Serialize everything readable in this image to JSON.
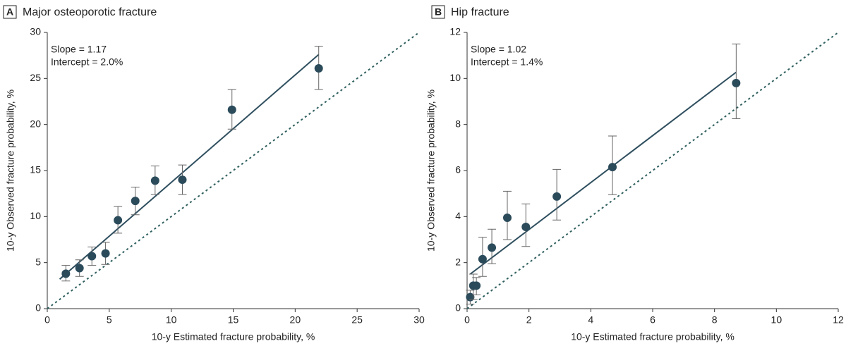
{
  "chart_data": [
    {
      "type": "scatter",
      "panel_label": "A",
      "title": "Major osteoporotic fracture",
      "x_label": "10-y Estimated fracture probability, %",
      "y_label": "10-y Observed fracture probability, %",
      "annotations": [
        "Slope = 1.17",
        "Intercept = 2.0%"
      ],
      "xlim": [
        0,
        30
      ],
      "xticks": [
        0,
        5,
        10,
        15,
        20,
        25,
        30
      ],
      "ylim": [
        0,
        30
      ],
      "yticks": [
        0,
        5,
        10,
        15,
        20,
        25,
        30
      ],
      "points": {
        "color": "#2b4b5b",
        "x": [
          1.5,
          2.6,
          3.6,
          4.7,
          5.7,
          7.1,
          8.7,
          10.9,
          14.9,
          21.9
        ],
        "values": [
          3.8,
          4.4,
          5.7,
          6.0,
          9.6,
          11.7,
          13.9,
          14.0,
          21.6,
          26.1
        ],
        "error_low": [
          3.0,
          3.5,
          4.7,
          4.8,
          8.2,
          10.2,
          12.4,
          12.4,
          19.5,
          23.8
        ],
        "error_high": [
          4.7,
          5.3,
          6.7,
          7.2,
          11.1,
          13.2,
          15.5,
          15.6,
          23.8,
          28.5
        ]
      },
      "fit_line": {
        "color": "#2f4f5f",
        "x": [
          1.0,
          21.9
        ],
        "values": [
          3.2,
          27.6
        ]
      },
      "reference_line": {
        "color": "#2f5f5f",
        "dashed": true,
        "x": [
          0,
          30
        ],
        "values": [
          0,
          30
        ]
      }
    },
    {
      "type": "scatter",
      "panel_label": "B",
      "title": "Hip fracture",
      "x_label": "10-y Estimated fracture probability, %",
      "y_label": "10-y Observed fracture probability, %",
      "annotations": [
        "Slope = 1.02",
        "Intercept = 1.4%"
      ],
      "xlim": [
        0,
        12
      ],
      "xticks": [
        0,
        2,
        4,
        6,
        8,
        10,
        12
      ],
      "ylim": [
        0,
        12
      ],
      "yticks": [
        0,
        2,
        4,
        6,
        8,
        10,
        12
      ],
      "points": {
        "color": "#2b4b5b",
        "x": [
          0.1,
          0.2,
          0.3,
          0.5,
          0.8,
          1.3,
          1.9,
          2.9,
          4.7,
          8.7
        ],
        "values": [
          0.5,
          1.0,
          1.0,
          2.15,
          2.65,
          3.95,
          3.55,
          4.87,
          6.15,
          9.8
        ],
        "error_low": [
          0.2,
          0.4,
          0.6,
          1.4,
          1.95,
          3.0,
          2.7,
          3.85,
          4.95,
          8.25
        ],
        "error_high": [
          0.8,
          1.5,
          1.35,
          3.1,
          3.45,
          5.1,
          4.55,
          6.05,
          7.5,
          11.5
        ]
      },
      "fit_line": {
        "color": "#2f4f5f",
        "x": [
          0.1,
          8.7
        ],
        "values": [
          1.5,
          10.27
        ]
      },
      "reference_line": {
        "color": "#2f5f5f",
        "dashed": true,
        "x": [
          0,
          12
        ],
        "values": [
          0,
          12
        ]
      }
    }
  ]
}
